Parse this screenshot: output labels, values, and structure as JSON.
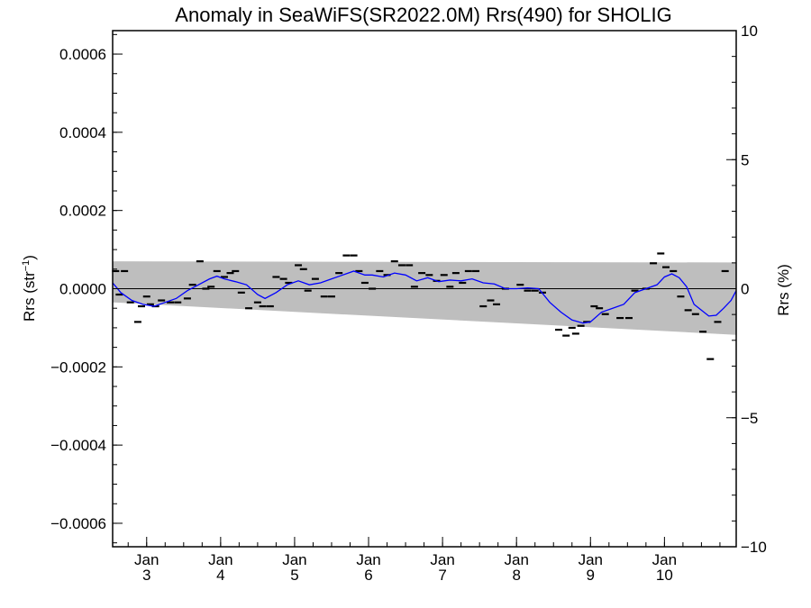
{
  "chart_data": {
    "type": "scatter",
    "title": "Anomaly in SeaWiFS(SR2022.0M) Rrs(490) for SHOLIG",
    "ylabel_left_base": "Rrs (str",
    "ylabel_left_sup": "−1",
    "ylabel_left_close": ")",
    "ylabel_right": "Rrs (%)",
    "x_range_days": [
      2.54,
      10.97
    ],
    "ylim_left": [
      -0.00066,
      0.00066
    ],
    "ylim_right": [
      -10,
      10
    ],
    "left_ticks": [
      {
        "value": 0.0006,
        "label": "0.0006"
      },
      {
        "value": 0.0004,
        "label": "0.0004"
      },
      {
        "value": 0.0002,
        "label": "0.0002"
      },
      {
        "value": 0.0,
        "label": "0.0000"
      },
      {
        "value": -0.0002,
        "label": "−0.0002"
      },
      {
        "value": -0.0004,
        "label": "−0.0004"
      },
      {
        "value": -0.0006,
        "label": "−0.0006"
      }
    ],
    "right_ticks": [
      {
        "value": 10,
        "label": "10"
      },
      {
        "value": 5,
        "label": "5"
      },
      {
        "value": 0,
        "label": "0"
      },
      {
        "value": -5,
        "label": "−5"
      },
      {
        "value": -10,
        "label": "−10"
      }
    ],
    "x_ticks": [
      {
        "value": 3,
        "month": "Jan",
        "day": "3"
      },
      {
        "value": 4,
        "month": "Jan",
        "day": "4"
      },
      {
        "value": 5,
        "month": "Jan",
        "day": "5"
      },
      {
        "value": 6,
        "month": "Jan",
        "day": "6"
      },
      {
        "value": 7,
        "month": "Jan",
        "day": "7"
      },
      {
        "value": 8,
        "month": "Jan",
        "day": "8"
      },
      {
        "value": 9,
        "month": "Jan",
        "day": "9"
      },
      {
        "value": 10,
        "month": "Jan",
        "day": "10"
      }
    ],
    "band": {
      "color": "#bebebe",
      "upper": [
        [
          2.54,
          7e-05
        ],
        [
          10.97,
          6.7e-05
        ]
      ],
      "lower": [
        [
          2.54,
          -3.5e-05
        ],
        [
          10.97,
          -0.000118
        ]
      ]
    },
    "smoothed_series": {
      "color": "#0000ff",
      "points": [
        [
          2.54,
          1.5e-05
        ],
        [
          2.65,
          -1e-05
        ],
        [
          2.8,
          -3e-05
        ],
        [
          2.95,
          -4e-05
        ],
        [
          3.1,
          -4.5e-05
        ],
        [
          3.25,
          -3.5e-05
        ],
        [
          3.4,
          -2.5e-05
        ],
        [
          3.55,
          -5e-06
        ],
        [
          3.7,
          1e-05
        ],
        [
          3.85,
          2.5e-05
        ],
        [
          3.95,
          3.2e-05
        ],
        [
          4.05,
          2.5e-05
        ],
        [
          4.2,
          1.8e-05
        ],
        [
          4.35,
          1e-05
        ],
        [
          4.5,
          -1.5e-05
        ],
        [
          4.6,
          -2.5e-05
        ],
        [
          4.75,
          -1e-05
        ],
        [
          4.9,
          1e-05
        ],
        [
          5.05,
          2e-05
        ],
        [
          5.2,
          1e-05
        ],
        [
          5.35,
          1.5e-05
        ],
        [
          5.5,
          2.5e-05
        ],
        [
          5.65,
          3.5e-05
        ],
        [
          5.8,
          4.5e-05
        ],
        [
          5.95,
          3.5e-05
        ],
        [
          6.05,
          3.5e-05
        ],
        [
          6.2,
          3e-05
        ],
        [
          6.35,
          4e-05
        ],
        [
          6.5,
          3.5e-05
        ],
        [
          6.65,
          2e-05
        ],
        [
          6.8,
          2.8e-05
        ],
        [
          6.95,
          1.8e-05
        ],
        [
          7.1,
          2.2e-05
        ],
        [
          7.25,
          2e-05
        ],
        [
          7.4,
          2.5e-05
        ],
        [
          7.55,
          1.5e-05
        ],
        [
          7.7,
          1.2e-05
        ],
        [
          7.85,
          0.0
        ],
        [
          8.0,
          0.0
        ],
        [
          8.15,
          2e-06
        ],
        [
          8.3,
          0.0
        ],
        [
          8.45,
          -3.5e-05
        ],
        [
          8.6,
          -6e-05
        ],
        [
          8.75,
          -8e-05
        ],
        [
          8.9,
          -8.8e-05
        ],
        [
          9.0,
          -8.5e-05
        ],
        [
          9.15,
          -6e-05
        ],
        [
          9.3,
          -5e-05
        ],
        [
          9.45,
          -4e-05
        ],
        [
          9.6,
          -1e-05
        ],
        [
          9.75,
          0.0
        ],
        [
          9.9,
          1e-05
        ],
        [
          10.0,
          3e-05
        ],
        [
          10.1,
          3.8e-05
        ],
        [
          10.2,
          2.8e-05
        ],
        [
          10.3,
          5e-06
        ],
        [
          10.4,
          -4e-05
        ],
        [
          10.5,
          -5.5e-05
        ],
        [
          10.6,
          -7e-05
        ],
        [
          10.7,
          -6.8e-05
        ],
        [
          10.8,
          -5e-05
        ],
        [
          10.9,
          -3e-05
        ],
        [
          10.97,
          -5e-06
        ]
      ]
    },
    "observations": [
      [
        2.58,
        4.5e-05
      ],
      [
        2.63,
        -1.5e-05
      ],
      [
        2.7,
        4.5e-05
      ],
      [
        2.78,
        -3.5e-05
      ],
      [
        2.88,
        -8.5e-05
      ],
      [
        2.93,
        -4.5e-05
      ],
      [
        3.0,
        -2e-05
      ],
      [
        3.05,
        -4e-05
      ],
      [
        3.12,
        -4.5e-05
      ],
      [
        3.2,
        -3e-05
      ],
      [
        3.32,
        -3.5e-05
      ],
      [
        3.42,
        -3.5e-05
      ],
      [
        3.55,
        -2.5e-05
      ],
      [
        3.62,
        1e-05
      ],
      [
        3.72,
        7e-05
      ],
      [
        3.8,
        0.0
      ],
      [
        3.87,
        5e-06
      ],
      [
        3.95,
        4.5e-05
      ],
      [
        4.05,
        3e-05
      ],
      [
        4.13,
        4e-05
      ],
      [
        4.2,
        4.5e-05
      ],
      [
        4.28,
        -1e-05
      ],
      [
        4.38,
        -5e-05
      ],
      [
        4.5,
        -3.5e-05
      ],
      [
        4.57,
        -4.5e-05
      ],
      [
        4.67,
        -4.5e-05
      ],
      [
        4.75,
        3e-05
      ],
      [
        4.85,
        2.5e-05
      ],
      [
        4.92,
        1.5e-05
      ],
      [
        5.05,
        6e-05
      ],
      [
        5.12,
        5e-05
      ],
      [
        5.18,
        -5e-06
      ],
      [
        5.28,
        2.5e-05
      ],
      [
        5.4,
        -2e-05
      ],
      [
        5.5,
        -2e-05
      ],
      [
        5.6,
        4e-05
      ],
      [
        5.7,
        8.5e-05
      ],
      [
        5.8,
        8.5e-05
      ],
      [
        5.87,
        4.5e-05
      ],
      [
        5.95,
        1.5e-05
      ],
      [
        6.05,
        0.0
      ],
      [
        6.15,
        4.5e-05
      ],
      [
        6.25,
        3.5e-05
      ],
      [
        6.35,
        7e-05
      ],
      [
        6.45,
        6e-05
      ],
      [
        6.55,
        6e-05
      ],
      [
        6.62,
        5e-06
      ],
      [
        6.72,
        4e-05
      ],
      [
        6.82,
        3.5e-05
      ],
      [
        6.92,
        2e-05
      ],
      [
        7.02,
        3.5e-05
      ],
      [
        7.1,
        5e-06
      ],
      [
        7.18,
        4e-05
      ],
      [
        7.27,
        1.5e-05
      ],
      [
        7.35,
        4.5e-05
      ],
      [
        7.45,
        4.5e-05
      ],
      [
        7.55,
        -4.5e-05
      ],
      [
        7.65,
        -3e-05
      ],
      [
        7.73,
        -4e-05
      ],
      [
        7.85,
        0.0
      ],
      [
        8.05,
        1e-05
      ],
      [
        8.15,
        -5e-06
      ],
      [
        8.25,
        -5e-06
      ],
      [
        8.35,
        -1e-05
      ],
      [
        8.57,
        -0.000105
      ],
      [
        8.67,
        -0.00012
      ],
      [
        8.75,
        -0.0001
      ],
      [
        8.8,
        -0.000115
      ],
      [
        8.87,
        -9.5e-05
      ],
      [
        8.95,
        -8.5e-05
      ],
      [
        9.05,
        -4.5e-05
      ],
      [
        9.12,
        -5e-05
      ],
      [
        9.2,
        -6.5e-05
      ],
      [
        9.4,
        -7.5e-05
      ],
      [
        9.52,
        -7.5e-05
      ],
      [
        9.6,
        -5e-06
      ],
      [
        9.75,
        0.0
      ],
      [
        9.85,
        6.5e-05
      ],
      [
        9.95,
        9e-05
      ],
      [
        10.02,
        5.5e-05
      ],
      [
        10.12,
        4.5e-05
      ],
      [
        10.22,
        -2e-05
      ],
      [
        10.32,
        -5.5e-05
      ],
      [
        10.42,
        -6.5e-05
      ],
      [
        10.52,
        -0.00011
      ],
      [
        10.62,
        -0.00018
      ],
      [
        10.72,
        -8.5e-05
      ],
      [
        10.82,
        4.5e-05
      ]
    ]
  }
}
